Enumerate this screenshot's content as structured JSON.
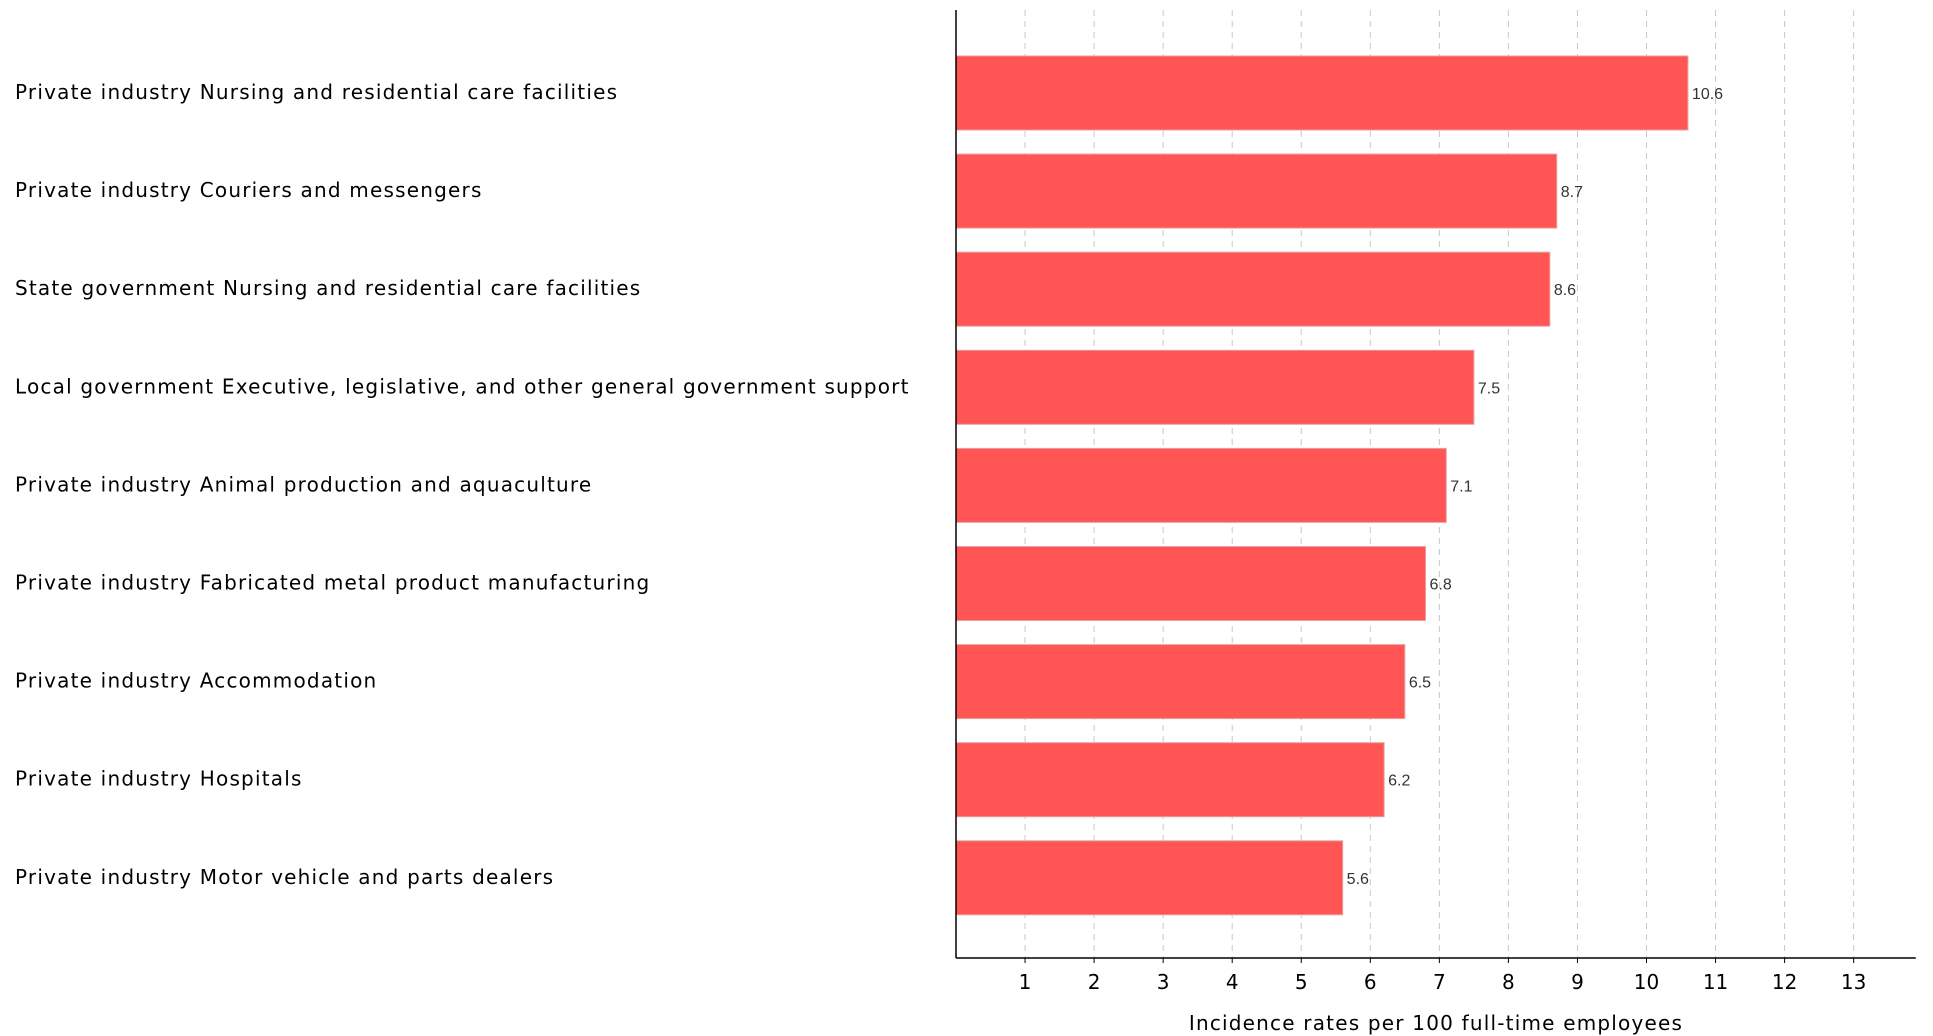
{
  "chart_data": {
    "type": "bar",
    "orientation": "horizontal",
    "categories": [
      "Private industry Nursing and residential care facilities",
      "Private industry Couriers and messengers",
      "State government Nursing and residential care facilities",
      "Local government Executive, legislative, and other general government support",
      "Private industry Animal production and aquaculture",
      "Private industry Fabricated metal product manufacturing",
      "Private industry Accommodation",
      "Private industry Hospitals",
      "Private industry Motor vehicle and parts dealers"
    ],
    "values": [
      10.6,
      8.7,
      8.6,
      7.5,
      7.1,
      6.8,
      6.5,
      6.2,
      5.6
    ],
    "value_labels": [
      "10.6",
      "8.7",
      "8.6",
      "7.5",
      "7.1",
      "6.8",
      "6.5",
      "6.2",
      "5.6"
    ],
    "xlabel": "Incidence rates per 100 full-time employees",
    "ylabel": "",
    "xlim": [
      0,
      13.9
    ],
    "xticks": [
      1,
      2,
      3,
      4,
      5,
      6,
      7,
      8,
      9,
      10,
      11,
      12,
      13
    ],
    "grid": "vertical dashed",
    "legend": "none",
    "bar_color": "#ff5555",
    "bar_edge_color": "#e8a0a0"
  }
}
